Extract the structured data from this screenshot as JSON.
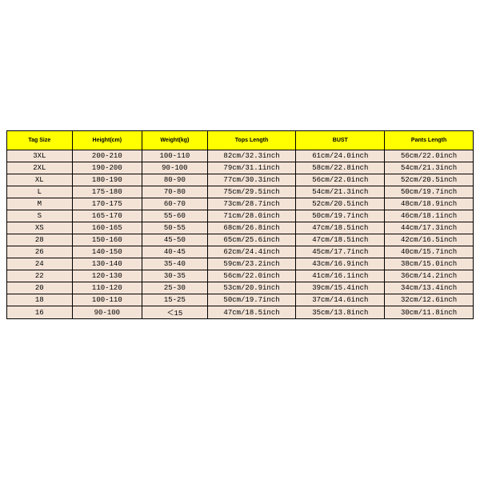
{
  "table": {
    "type": "table",
    "background_color": "#ffffff",
    "header_bg": "#ffff00",
    "row_bg": "#f3e3d6",
    "border_color": "#000000",
    "header_fontsize": 7,
    "cell_fontsize": 9,
    "columns": [
      "Tag Size",
      "Height(cm)",
      "Weight(kg)",
      "Tops Length",
      "BUST",
      "Pants Length"
    ],
    "rows": [
      [
        "3XL",
        "200-210",
        "100-110",
        "82cm/32.3inch",
        "61cm/24.0inch",
        "56cm/22.0inch"
      ],
      [
        "2XL",
        "190-200",
        "90-100",
        "79cm/31.1inch",
        "58cm/22.8inch",
        "54cm/21.3inch"
      ],
      [
        "XL",
        "180-190",
        "80-90",
        "77cm/30.3inch",
        "56cm/22.0inch",
        "52cm/20.5inch"
      ],
      [
        "L",
        "175-180",
        "70-80",
        "75cm/29.5inch",
        "54cm/21.3inch",
        "50cm/19.7inch"
      ],
      [
        "M",
        "170-175",
        "60-70",
        "73cm/28.7inch",
        "52cm/20.5inch",
        "48cm/18.9inch"
      ],
      [
        "S",
        "165-170",
        "55-60",
        "71cm/28.0inch",
        "50cm/19.7inch",
        "46cm/18.1inch"
      ],
      [
        "XS",
        "160-165",
        "50-55",
        "68cm/26.8inch",
        "47cm/18.5inch",
        "44cm/17.3inch"
      ],
      [
        "28",
        "150-160",
        "45-50",
        "65cm/25.6inch",
        "47cm/18.5inch",
        "42cm/16.5inch"
      ],
      [
        "26",
        "140-150",
        "40-45",
        "62cm/24.4inch",
        "45cm/17.7inch",
        "40cm/15.7inch"
      ],
      [
        "24",
        "130-140",
        "35-40",
        "59cm/23.2inch",
        "43cm/16.9inch",
        "38cm/15.0inch"
      ],
      [
        "22",
        "120-130",
        "30-35",
        "56cm/22.0inch",
        "41cm/16.1inch",
        "36cm/14.2inch"
      ],
      [
        "20",
        "110-120",
        "25-30",
        "53cm/20.9inch",
        "39cm/15.4inch",
        "34cm/13.4inch"
      ],
      [
        "18",
        "100-110",
        "15-25",
        "50cm/19.7inch",
        "37cm/14.6inch",
        "32cm/12.6inch"
      ],
      [
        "16",
        "90-100",
        "＜15",
        "47cm/18.5inch",
        "35cm/13.8inch",
        "30cm/11.8inch"
      ]
    ],
    "col_widths_pct": [
      14,
      15,
      14,
      19,
      19,
      19
    ]
  }
}
